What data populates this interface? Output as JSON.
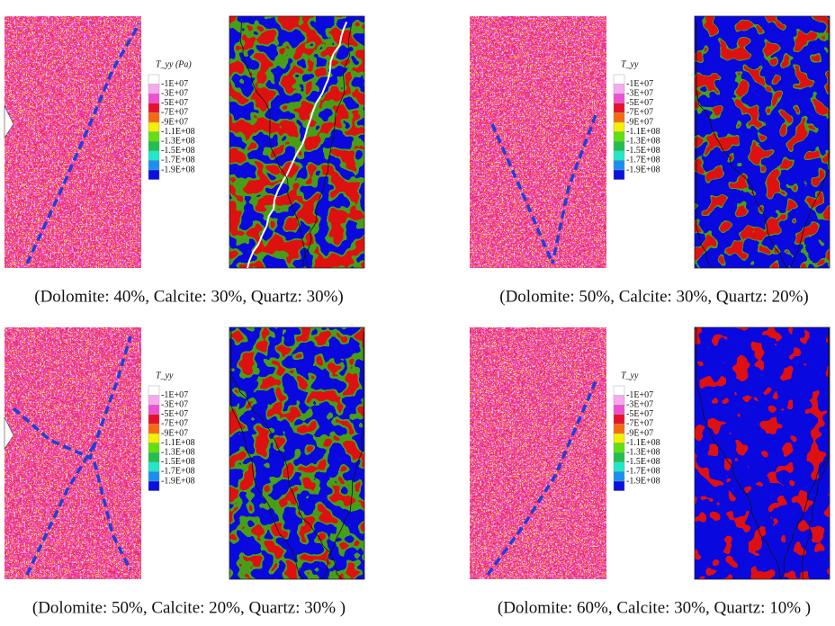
{
  "legend_colors": [
    "#ffffff",
    "#f8a8f0",
    "#f050d0",
    "#e8102c",
    "#f86a10",
    "#f4f000",
    "#60e010",
    "#20c050",
    "#20e8c8",
    "#1890f0",
    "#0a10e0"
  ],
  "panels": [
    {
      "caption": "(Dolomite: 40%, Calcite: 30%, Quartz: 30%)",
      "legend_title": "T_yy (Pa)",
      "legend_labels": [
        "-1E+07",
        "-3E+07",
        "-5E+07",
        "-7E+07",
        "-9E+07",
        "-1.1E+08",
        "-1.3E+08",
        "-1.5E+08",
        "-1.7E+08",
        "-1.9E+08"
      ]
    },
    {
      "caption": "(Dolomite: 50%, Calcite: 30%, Quartz: 20%)",
      "legend_title": "T_yy",
      "legend_labels": [
        "-1E+07",
        "-3E+07",
        "-5E+07",
        "-7E+07",
        "-9E+07",
        "-1.1E+08",
        "-1.3E+08",
        "-1.5E+08",
        "-1.7E+08",
        "-1.9E+08"
      ]
    },
    {
      "caption": "(Dolomite: 50%, Calcite: 20%, Quartz: 30% )",
      "legend_title": "T_yy",
      "legend_labels": [
        "-1E+07",
        "-3E+07",
        "-5E+07",
        "-7E+07",
        "-9E+07",
        "-1.1E+08",
        "-1.3E+08",
        "-1.5E+08",
        "-1.7E+08",
        "-1.9E+08"
      ]
    },
    {
      "caption": "(Dolomite: 60%, Calcite: 30%, Quartz: 10% )",
      "legend_title": "T_yy",
      "legend_labels": [
        "-1E+07",
        "-3E+07",
        "-5E+07",
        "-7E+07",
        "-9E+07",
        "-1.1E+08",
        "-1.3E+08",
        "-1.5E+08",
        "-1.7E+08",
        "-1.9E+08"
      ]
    }
  ]
}
